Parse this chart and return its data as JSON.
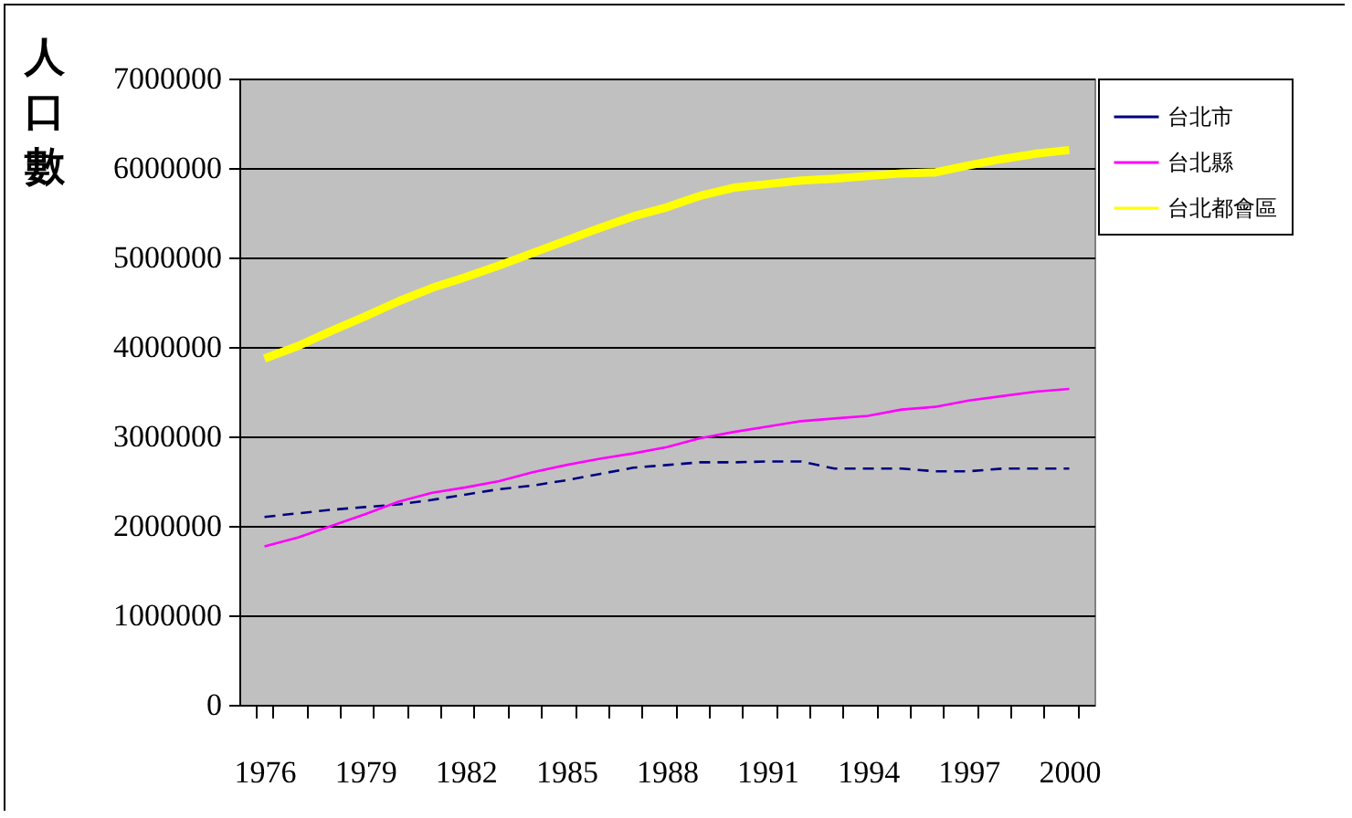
{
  "chart_data": {
    "type": "line",
    "ylabel": "人口數",
    "categories": [
      "1976",
      null,
      null,
      "1979",
      null,
      null,
      "1982",
      null,
      null,
      "1985",
      null,
      null,
      "1988",
      null,
      null,
      "1991",
      null,
      null,
      "1994",
      null,
      null,
      "1997",
      null,
      null,
      "2000"
    ],
    "ylim": [
      0,
      7000000
    ],
    "yticks": [
      0,
      1000000,
      2000000,
      3000000,
      4000000,
      5000000,
      6000000,
      7000000
    ],
    "grid": "y",
    "legend": "right",
    "marker": "none",
    "series": [
      {
        "name": "台北市",
        "color": "#000080",
        "line_style": "dashed",
        "values": [
          2100000,
          2140000,
          2180000,
          2210000,
          2240000,
          2290000,
          2350000,
          2410000,
          2450000,
          2510000,
          2580000,
          2650000,
          2680000,
          2710000,
          2710000,
          2720000,
          2720000,
          2640000,
          2640000,
          2640000,
          2610000,
          2610000,
          2640000,
          2640000,
          2640000
        ]
      },
      {
        "name": "台北縣",
        "color": "#ff00ff",
        "line_style": "solid",
        "values": [
          1770000,
          1870000,
          2000000,
          2130000,
          2270000,
          2370000,
          2430000,
          2500000,
          2600000,
          2680000,
          2750000,
          2810000,
          2880000,
          2980000,
          3050000,
          3110000,
          3170000,
          3200000,
          3230000,
          3300000,
          3330000,
          3400000,
          3450000,
          3500000,
          3530000
        ]
      },
      {
        "name": "台北都會區",
        "color": "#ffff00",
        "line_style": "solid",
        "values": [
          3870000,
          4010000,
          4180000,
          4340000,
          4510000,
          4660000,
          4780000,
          4910000,
          5050000,
          5190000,
          5330000,
          5460000,
          5560000,
          5690000,
          5780000,
          5820000,
          5860000,
          5880000,
          5910000,
          5940000,
          5950000,
          6030000,
          6100000,
          6160000,
          6200000
        ]
      }
    ]
  }
}
